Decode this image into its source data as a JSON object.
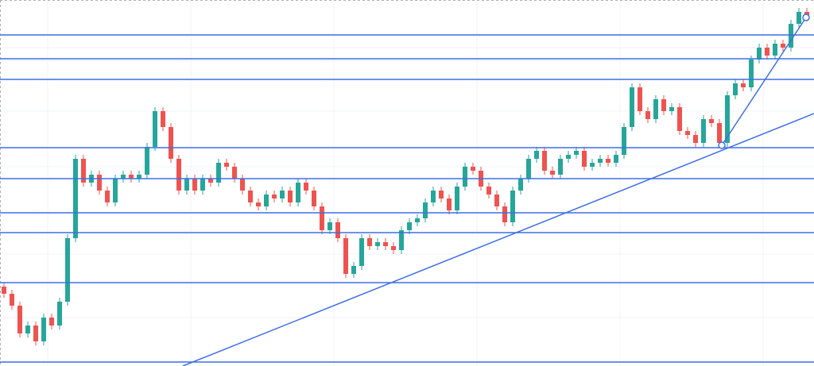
{
  "chart_data": {
    "type": "candlestick",
    "open": [
      100,
      91,
      76,
      41,
      51,
      31,
      61,
      51,
      81,
      161,
      261,
      231,
      241,
      221,
      206,
      236,
      241,
      236,
      241,
      276,
      321,
      301,
      261,
      221,
      236,
      221,
      236,
      231,
      256,
      251,
      236,
      221,
      206,
      201,
      216,
      211,
      221,
      206,
      231,
      221,
      201,
      171,
      181,
      161,
      116,
      126,
      161,
      151,
      156,
      151,
      146,
      171,
      181,
      186,
      206,
      221,
      211,
      196,
      226,
      251,
      246,
      226,
      216,
      201,
      181,
      221,
      236,
      261,
      271,
      246,
      241,
      261,
      266,
      271,
      251,
      256,
      261,
      256,
      266,
      301,
      351,
      321,
      311,
      336,
      321,
      326,
      296,
      291,
      281,
      311,
      306,
      281,
      341,
      356,
      351,
      386,
      401,
      391,
      406,
      401,
      431,
      446
    ],
    "high": [
      105,
      96,
      81,
      56,
      56,
      66,
      66,
      86,
      166,
      266,
      266,
      246,
      246,
      226,
      241,
      246,
      246,
      246,
      281,
      326,
      326,
      306,
      266,
      241,
      241,
      241,
      241,
      261,
      261,
      256,
      241,
      226,
      211,
      221,
      221,
      226,
      226,
      236,
      236,
      226,
      206,
      186,
      186,
      166,
      131,
      166,
      166,
      161,
      161,
      156,
      176,
      186,
      191,
      211,
      226,
      226,
      216,
      231,
      256,
      256,
      251,
      231,
      221,
      206,
      226,
      241,
      266,
      276,
      276,
      251,
      266,
      271,
      276,
      276,
      261,
      266,
      266,
      271,
      306,
      356,
      356,
      326,
      341,
      341,
      331,
      331,
      301,
      296,
      316,
      316,
      311,
      346,
      361,
      361,
      391,
      406,
      406,
      411,
      411,
      436,
      451,
      451
    ],
    "low": [
      86,
      71,
      36,
      36,
      26,
      26,
      46,
      46,
      76,
      156,
      226,
      226,
      216,
      201,
      201,
      231,
      231,
      231,
      236,
      271,
      296,
      256,
      216,
      216,
      216,
      216,
      226,
      226,
      246,
      231,
      216,
      201,
      196,
      196,
      206,
      206,
      201,
      201,
      216,
      196,
      166,
      166,
      156,
      111,
      111,
      121,
      146,
      146,
      146,
      141,
      141,
      166,
      176,
      181,
      201,
      206,
      191,
      191,
      221,
      241,
      221,
      211,
      196,
      176,
      176,
      216,
      231,
      256,
      241,
      236,
      236,
      256,
      261,
      246,
      246,
      251,
      251,
      251,
      261,
      296,
      316,
      306,
      306,
      316,
      316,
      291,
      286,
      276,
      276,
      301,
      276,
      276,
      336,
      346,
      346,
      381,
      386,
      386,
      396,
      396,
      426,
      434
    ],
    "close": [
      91,
      76,
      41,
      51,
      31,
      61,
      51,
      81,
      161,
      261,
      231,
      241,
      221,
      206,
      236,
      241,
      236,
      241,
      276,
      321,
      301,
      261,
      221,
      236,
      221,
      236,
      231,
      256,
      251,
      236,
      221,
      206,
      201,
      216,
      211,
      221,
      206,
      231,
      221,
      201,
      171,
      181,
      161,
      116,
      126,
      161,
      151,
      156,
      151,
      146,
      171,
      181,
      186,
      206,
      221,
      211,
      196,
      226,
      251,
      246,
      226,
      216,
      201,
      181,
      221,
      236,
      261,
      271,
      246,
      241,
      261,
      266,
      271,
      251,
      256,
      261,
      256,
      266,
      301,
      351,
      321,
      311,
      336,
      321,
      326,
      296,
      291,
      281,
      311,
      306,
      281,
      341,
      356,
      351,
      386,
      401,
      391,
      406,
      401,
      431,
      446,
      439
    ],
    "up_color": "#26a69a",
    "down_color": "#ef5350",
    "line_color": "#3d6fe6",
    "xlim": [
      -0.5,
      101.9
    ],
    "ylim": [
      0,
      461
    ],
    "horizontal_lines": [
      417,
      387,
      361,
      275,
      236,
      193,
      168,
      105,
      5
    ],
    "trend_lines": [
      {
        "x": [
          22.5,
          101.9
        ],
        "y": [
          0,
          318
        ]
      },
      {
        "x": [
          90.3,
          100.9
        ],
        "y": [
          278,
          439
        ],
        "handles": true
      }
    ]
  }
}
